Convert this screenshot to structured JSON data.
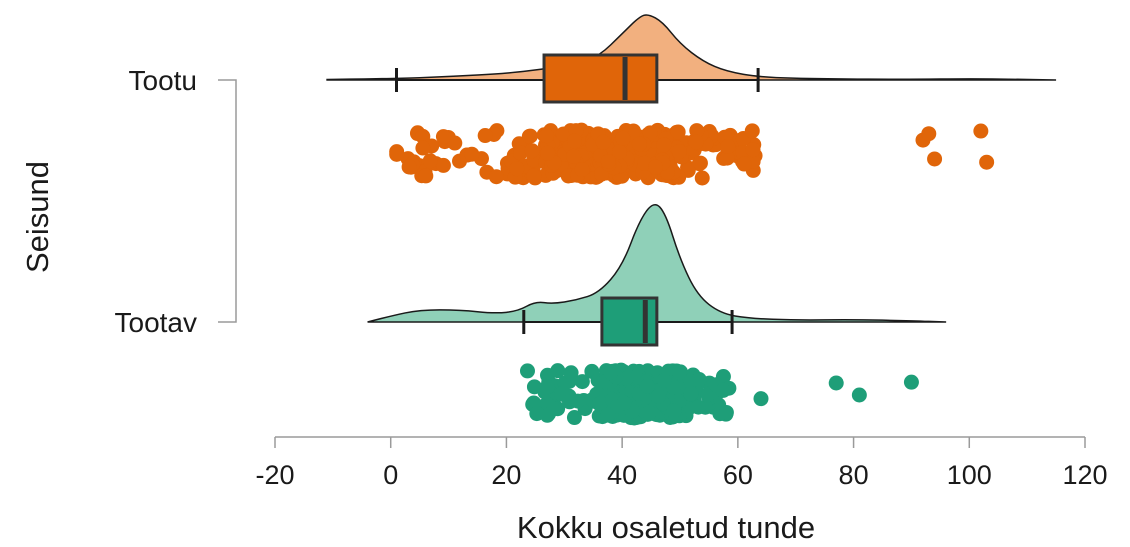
{
  "chart_data": {
    "type": "raincloud",
    "xlabel": "Kokku osaletud tunde",
    "ylabel": "Seisund",
    "xlim": [
      -20,
      120
    ],
    "xticks": [
      -20,
      0,
      20,
      40,
      60,
      80,
      100,
      120
    ],
    "grid": false,
    "legend": "none",
    "groups": [
      {
        "label": "Tootu",
        "fill_color": "#F2B07F",
        "point_color": "#E06509",
        "box_color": "#E06509",
        "box": {
          "whisker_low": 1,
          "q1": 26.5,
          "median": 40.5,
          "q3": 46,
          "whisker_high": 63.5
        },
        "density_range": [
          -11,
          115
        ],
        "density_peak": 44.5,
        "outliers": [
          92,
          93,
          94,
          102,
          103
        ]
      },
      {
        "label": "Tootav",
        "fill_color": "#8FD0B8",
        "point_color": "#1E9E78",
        "box_color": "#1E9E78",
        "box": {
          "whisker_low": 23,
          "q1": 36.5,
          "median": 44,
          "q3": 46,
          "whisker_high": 59
        },
        "density_range": [
          -4,
          96
        ],
        "density_peak": 45.5,
        "outliers": [
          64,
          77,
          81,
          90
        ]
      }
    ]
  }
}
